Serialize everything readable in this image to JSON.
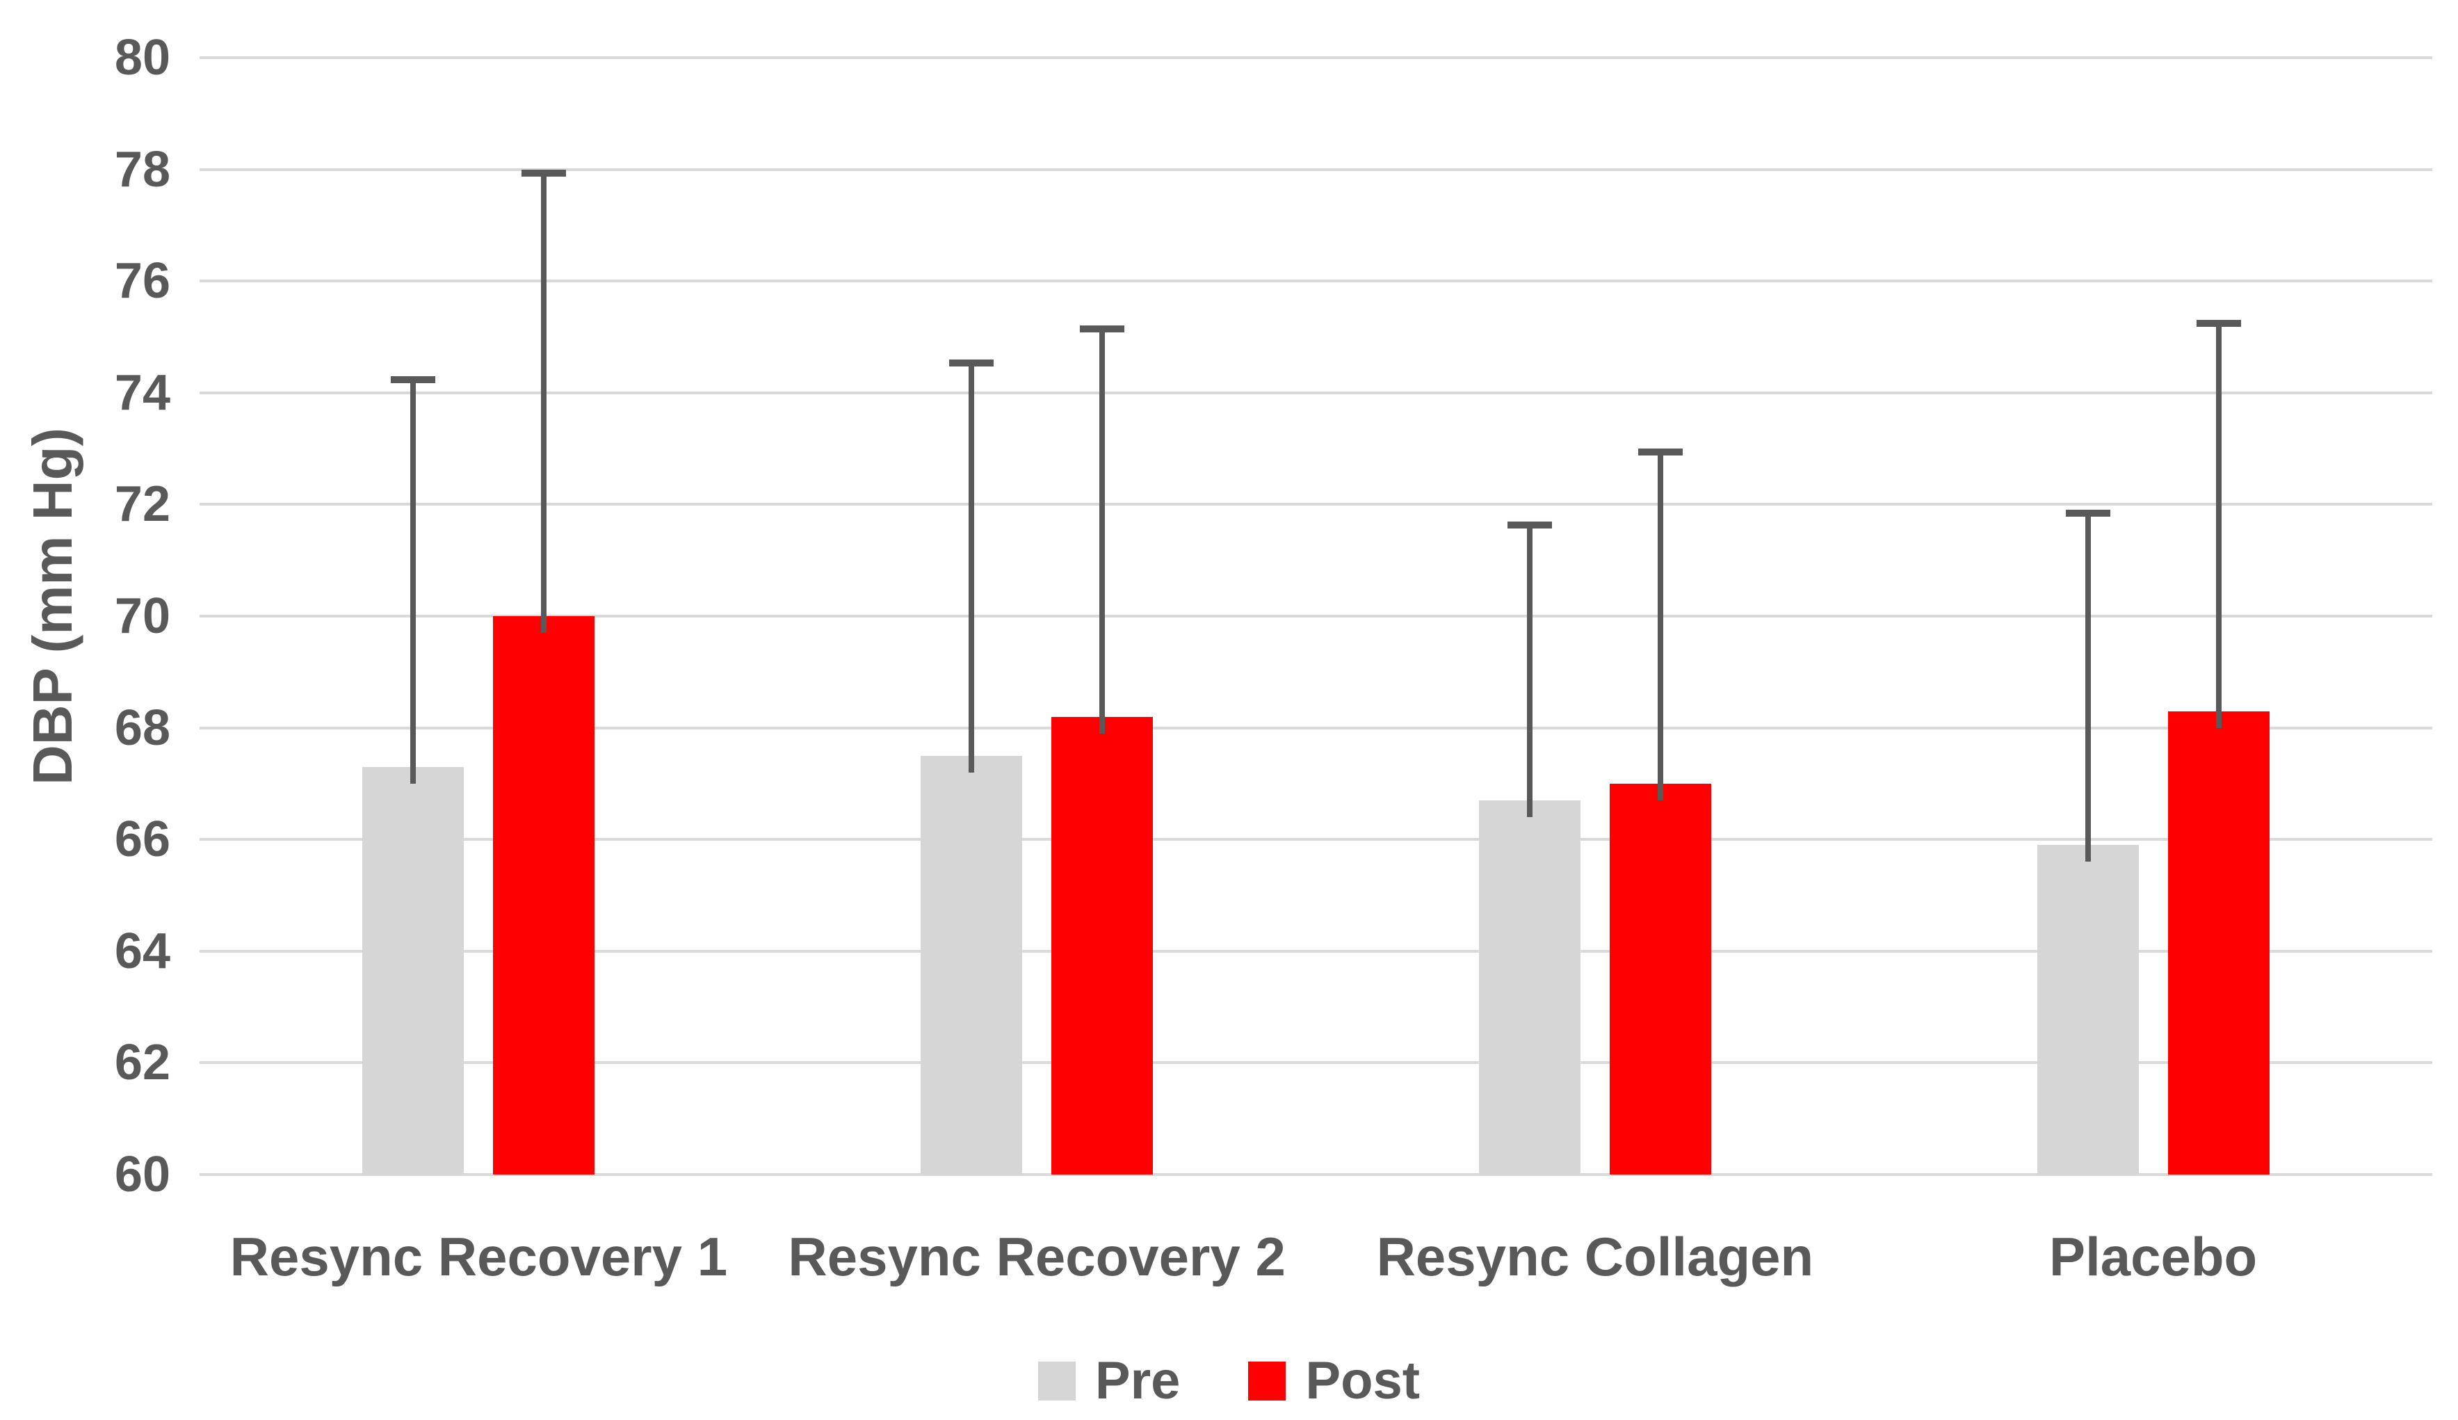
{
  "chart_data": {
    "type": "bar",
    "title": "",
    "xlabel": "",
    "ylabel": "DBP (mm Hg)",
    "ylim": [
      60,
      80
    ],
    "yticks": [
      60,
      62,
      64,
      66,
      68,
      70,
      72,
      74,
      76,
      78,
      80
    ],
    "grid": true,
    "legend_position": "bottom",
    "categories": [
      "Resync Recovery 1",
      "Resync Recovery 2",
      "Resync Collagen",
      "Placebo"
    ],
    "series": [
      {
        "name": "Pre",
        "color": "#d6d6d6",
        "values": [
          67.3,
          67.5,
          66.7,
          65.9
        ],
        "error_bar_tops": [
          74.3,
          74.6,
          71.7,
          71.9
        ]
      },
      {
        "name": "Post",
        "color": "#ff0000",
        "values": [
          70.0,
          68.2,
          67.0,
          68.3
        ],
        "error_bar_tops": [
          78.0,
          75.2,
          73.0,
          75.3
        ]
      }
    ],
    "error_bar_direction": "plus-only",
    "axis_text_color": "#595959",
    "gridline_color": "#d9d9d9",
    "error_bar_color": "#595959",
    "background_color": "#ffffff"
  }
}
